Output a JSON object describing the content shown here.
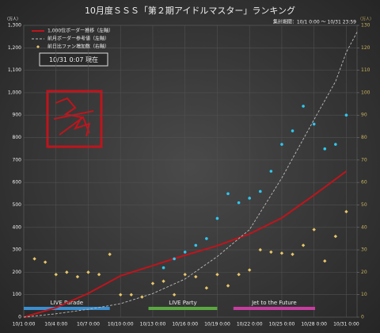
{
  "chart_data": {
    "type": "line",
    "title": "10月度ＳＳＳ「第２期アイドルマスター」ランキング",
    "subtitle": "集計期間：10/1 0:00 ～ 10/31 23:59",
    "y_label": "（万人）",
    "y2_label": "（万人）",
    "annotation": "10/31  0:07  現在",
    "xlim": [
      0,
      31
    ],
    "xticks": [
      {
        "value": 0,
        "label": "10/1 0:00"
      },
      {
        "value": 3,
        "label": "10/4 0:00"
      },
      {
        "value": 6,
        "label": "10/7 0:00"
      },
      {
        "value": 9,
        "label": "10/10 0:00"
      },
      {
        "value": 12,
        "label": "10/13 0:00"
      },
      {
        "value": 15,
        "label": "10/16 0:00"
      },
      {
        "value": 18,
        "label": "10/19 0:00"
      },
      {
        "value": 21,
        "label": "10/22 0:00"
      },
      {
        "value": 24,
        "label": "10/25 0:00"
      },
      {
        "value": 27,
        "label": "10/28 0:00"
      },
      {
        "value": 30,
        "label": "10/31 0:00"
      }
    ],
    "ylim": [
      0,
      1300
    ],
    "yticks": [
      0,
      100,
      200,
      300,
      400,
      500,
      600,
      700,
      800,
      900,
      {
        "value": 1000,
        "label": "1,000"
      },
      {
        "value": 1100,
        "label": "1,100"
      },
      {
        "value": 1200,
        "label": "1,200"
      },
      {
        "value": 1300,
        "label": "1,300"
      }
    ],
    "y2lim": [
      0,
      130
    ],
    "y2ticks": [
      0,
      10,
      20,
      30,
      40,
      50,
      60,
      70,
      80,
      90,
      100,
      110,
      120,
      130
    ],
    "grid": true,
    "series": [
      {
        "name": "1,000位ボーダー推移（左軸）",
        "color": "#c0141c",
        "style": "solid",
        "axis": "y",
        "x": [
          0,
          3,
          6,
          9,
          12,
          15,
          18,
          21,
          24,
          27,
          30
        ],
        "values": [
          0,
          42,
          106,
          184,
          230,
          276,
          318,
          371,
          442,
          544,
          650
        ]
      },
      {
        "name": "前月ボーダー参考値（左軸）",
        "color": "#bbbbbb",
        "style": "dashed",
        "axis": "y",
        "x": [
          0,
          3,
          6,
          9,
          12,
          15,
          18,
          21,
          24,
          27,
          29,
          30,
          31
        ],
        "values": [
          0,
          15,
          35,
          60,
          105,
          170,
          270,
          390,
          620,
          880,
          1050,
          1180,
          1270
        ]
      },
      {
        "name": "前日比ファン増加数（右軸）",
        "color": "#e8c66a",
        "style": "diamond",
        "axis": "y2",
        "x": [
          1,
          2,
          3,
          4,
          5,
          6,
          7,
          8,
          9,
          10,
          11,
          12,
          13,
          14,
          15,
          16,
          17,
          18,
          19,
          20,
          21,
          22,
          23,
          24,
          25,
          26,
          27,
          28,
          29,
          30
        ],
        "values": [
          26,
          24.5,
          19,
          20,
          18,
          20,
          19,
          28,
          10,
          10,
          9,
          15,
          16,
          10,
          19,
          18,
          13,
          19,
          14,
          19,
          21,
          30,
          29,
          28.5,
          28,
          32,
          39,
          25,
          36,
          47
        ]
      },
      {
        "color": "#2ec8f0",
        "style": "dot",
        "axis": "y2",
        "x": [
          13,
          14,
          15,
          16,
          17,
          18,
          19,
          20,
          21,
          22,
          23,
          24,
          25,
          26,
          27,
          28,
          29,
          30
        ],
        "values": [
          22,
          26,
          29,
          32,
          35,
          44,
          55,
          51,
          53,
          56,
          65,
          77,
          83,
          94,
          86,
          75,
          77,
          90
        ]
      }
    ],
    "events": [
      {
        "label": "LIVE Parade",
        "start": 0,
        "end": 8,
        "color": "#3a8fd0"
      },
      {
        "label": "LIVE Party",
        "start": 11.6,
        "end": 18,
        "color": "#5aa840"
      },
      {
        "label": "Jet to the Future",
        "start": 19.5,
        "end": 27.1,
        "color": "#c83ca0"
      }
    ]
  }
}
